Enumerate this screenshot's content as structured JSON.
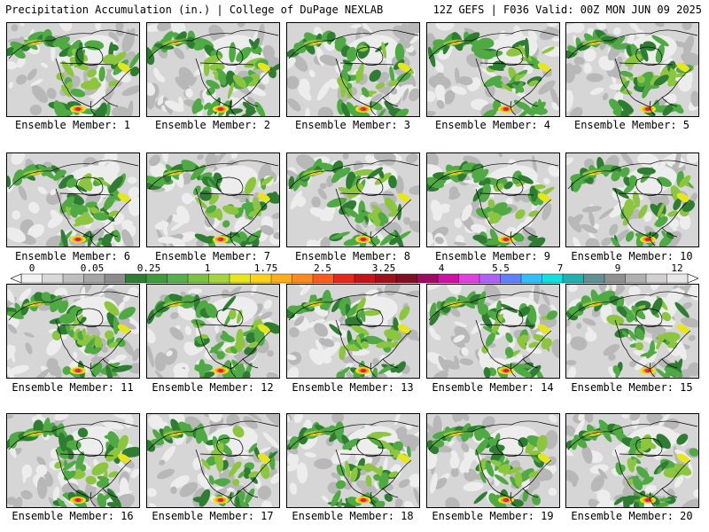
{
  "header": {
    "left": "Precipitation Accumulation (in.) | College of DuPage NEXLAB",
    "right": "12Z GEFS | F036 Valid: 00Z MON JUN 09 2025"
  },
  "members": [
    {
      "label": "Ensemble Member: 1",
      "icon": "precip-map"
    },
    {
      "label": "Ensemble Member: 2",
      "icon": "precip-map"
    },
    {
      "label": "Ensemble Member: 3",
      "icon": "precip-map"
    },
    {
      "label": "Ensemble Member: 4",
      "icon": "precip-map"
    },
    {
      "label": "Ensemble Member: 5",
      "icon": "precip-map"
    },
    {
      "label": "Ensemble Member: 6",
      "icon": "precip-map"
    },
    {
      "label": "Ensemble Member: 7",
      "icon": "precip-map"
    },
    {
      "label": "Ensemble Member: 8",
      "icon": "precip-map"
    },
    {
      "label": "Ensemble Member: 9",
      "icon": "precip-map"
    },
    {
      "label": "Ensemble Member: 10",
      "icon": "precip-map"
    },
    {
      "label": "Ensemble Member: 11",
      "icon": "precip-map"
    },
    {
      "label": "Ensemble Member: 12",
      "icon": "precip-map"
    },
    {
      "label": "Ensemble Member: 13",
      "icon": "precip-map"
    },
    {
      "label": "Ensemble Member: 14",
      "icon": "precip-map"
    },
    {
      "label": "Ensemble Member: 15",
      "icon": "precip-map"
    },
    {
      "label": "Ensemble Member: 16",
      "icon": "precip-map"
    },
    {
      "label": "Ensemble Member: 17",
      "icon": "precip-map"
    },
    {
      "label": "Ensemble Member: 18",
      "icon": "precip-map"
    },
    {
      "label": "Ensemble Member: 19",
      "icon": "precip-map"
    },
    {
      "label": "Ensemble Member: 20",
      "icon": "precip-map"
    }
  ],
  "colorbar": {
    "labels": [
      "0",
      "0.05",
      "0.25",
      "1",
      "1.75",
      "2.5",
      "3.25",
      "4",
      "5.5",
      "7",
      "9",
      "12"
    ],
    "colors": [
      "#f2f2f2",
      "#d9d9d9",
      "#bfbfbf",
      "#a6a6a6",
      "#8c8c8c",
      "#2f7d32",
      "#3f9a3a",
      "#55b04a",
      "#7cc242",
      "#a6d43a",
      "#e6e61a",
      "#ffd21a",
      "#ffae1a",
      "#ff8a1a",
      "#ff5a1a",
      "#e8261a",
      "#c4141a",
      "#a0101a",
      "#801020",
      "#a00a60",
      "#d010a0",
      "#e040e0",
      "#b060ff",
      "#6080ff",
      "#30c0ff",
      "#10e0e0",
      "#20b0b0",
      "#609090",
      "#909090",
      "#b0b0b0",
      "#d0d0d0",
      "#e8e8e8"
    ]
  },
  "map_colors": {
    "background": "#d6d6d6",
    "light": "#ededed",
    "mid": "#b8b8b8",
    "green_dark": "#2f7d32",
    "green": "#4faa43",
    "green_light": "#8cc63f",
    "yellow": "#e6e61a",
    "orange": "#ff9a1a",
    "red": "#e8261a",
    "magenta": "#d010a0",
    "purple": "#8060ff",
    "outline": "#000000"
  }
}
